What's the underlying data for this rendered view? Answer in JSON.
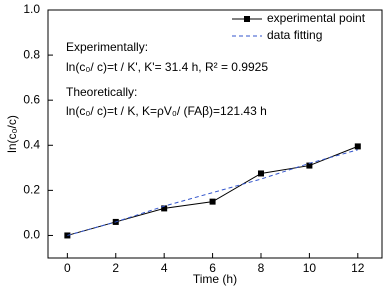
{
  "chart_data": {
    "type": "line",
    "x_label": "Time (h)",
    "y_label": "ln(c₀/c)",
    "x": [
      0,
      2,
      4,
      6,
      8,
      10,
      12
    ],
    "series": [
      {
        "name": "experimental point",
        "color": "#000000",
        "line_style": "solid",
        "marker": "square",
        "values": [
          0,
          0.06,
          0.12,
          0.15,
          0.275,
          0.31,
          0.395
        ]
      },
      {
        "name": "data fitting",
        "color": "#3355cc",
        "line_style": "dashed",
        "marker": "none",
        "values": [
          0,
          0.06,
          0.13,
          0.19,
          0.25,
          0.32,
          0.38
        ]
      }
    ],
    "xlim": [
      -0.8,
      13
    ],
    "ylim": [
      -0.1,
      1.0
    ],
    "xticks": [
      0,
      2,
      4,
      6,
      8,
      10,
      12
    ],
    "yticks": [
      {
        "value": 0,
        "label": "0.0"
      },
      0.2,
      0.4,
      0.6,
      0.8,
      {
        "value": 1,
        "label": "1.0"
      }
    ],
    "legend": "upper right",
    "annotations": [
      "Experimentally:",
      "ln(c₀/ c)=t / K', K'= 31.4 h, R² = 0.9925",
      "Theoretically:",
      "ln(c₀/ c)=t / K, K=ρV₀/ (FAβ)=121.43 h"
    ]
  }
}
